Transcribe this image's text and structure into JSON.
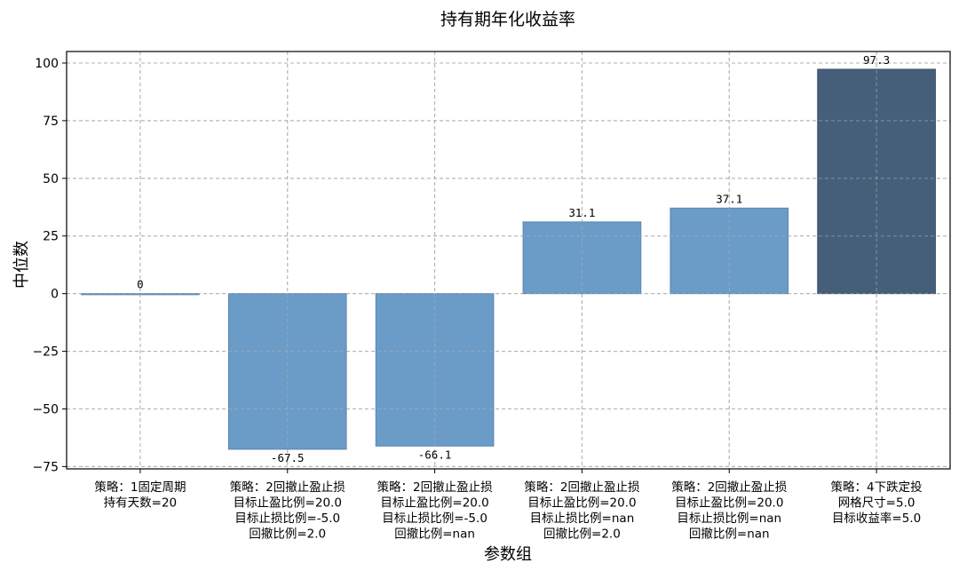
{
  "chart_data": {
    "type": "bar",
    "title": "持有期年化收益率",
    "xlabel": "参数组",
    "ylabel": "中位数",
    "ylim": [
      -76,
      105
    ],
    "yticks": [
      -75,
      -50,
      -25,
      0,
      25,
      50,
      75,
      100
    ],
    "ytick_labels": [
      "−75",
      "−50",
      "−25",
      "0",
      "25",
      "50",
      "75",
      "100"
    ],
    "grid": true,
    "categories": [
      [
        "策略：1固定周期",
        "持有天数=20"
      ],
      [
        "策略：2回撤止盈止损",
        "目标止盈比例=20.0",
        "目标止损比例=-5.0",
        "回撤比例=2.0"
      ],
      [
        "策略：2回撤止盈止损",
        "目标止盈比例=20.0",
        "目标止损比例=-5.0",
        "回撤比例=nan"
      ],
      [
        "策略：2回撤止盈止损",
        "目标止盈比例=20.0",
        "目标止损比例=nan",
        "回撤比例=2.0"
      ],
      [
        "策略：2回撤止盈止损",
        "目标止盈比例=20.0",
        "目标止损比例=nan",
        "回撤比例=nan"
      ],
      [
        "策略：4下跌定投",
        "网格尺寸=5.0",
        "目标收益率=5.0"
      ]
    ],
    "values": [
      0,
      -67.5,
      -66.1,
      31.1,
      37.1,
      97.3
    ],
    "data_labels": [
      "0",
      "-67.5",
      "-66.1",
      "31.1",
      "37.1",
      "97.3"
    ],
    "bar_colors": [
      "#6b9bc7",
      "#6b9bc7",
      "#6b9bc7",
      "#6b9bc7",
      "#6b9bc7",
      "#455f7a"
    ],
    "bar_edge_colors": [
      "#5a87b0",
      "#5a87b0",
      "#5a87b0",
      "#5a87b0",
      "#5a87b0",
      "#3a5068"
    ]
  }
}
